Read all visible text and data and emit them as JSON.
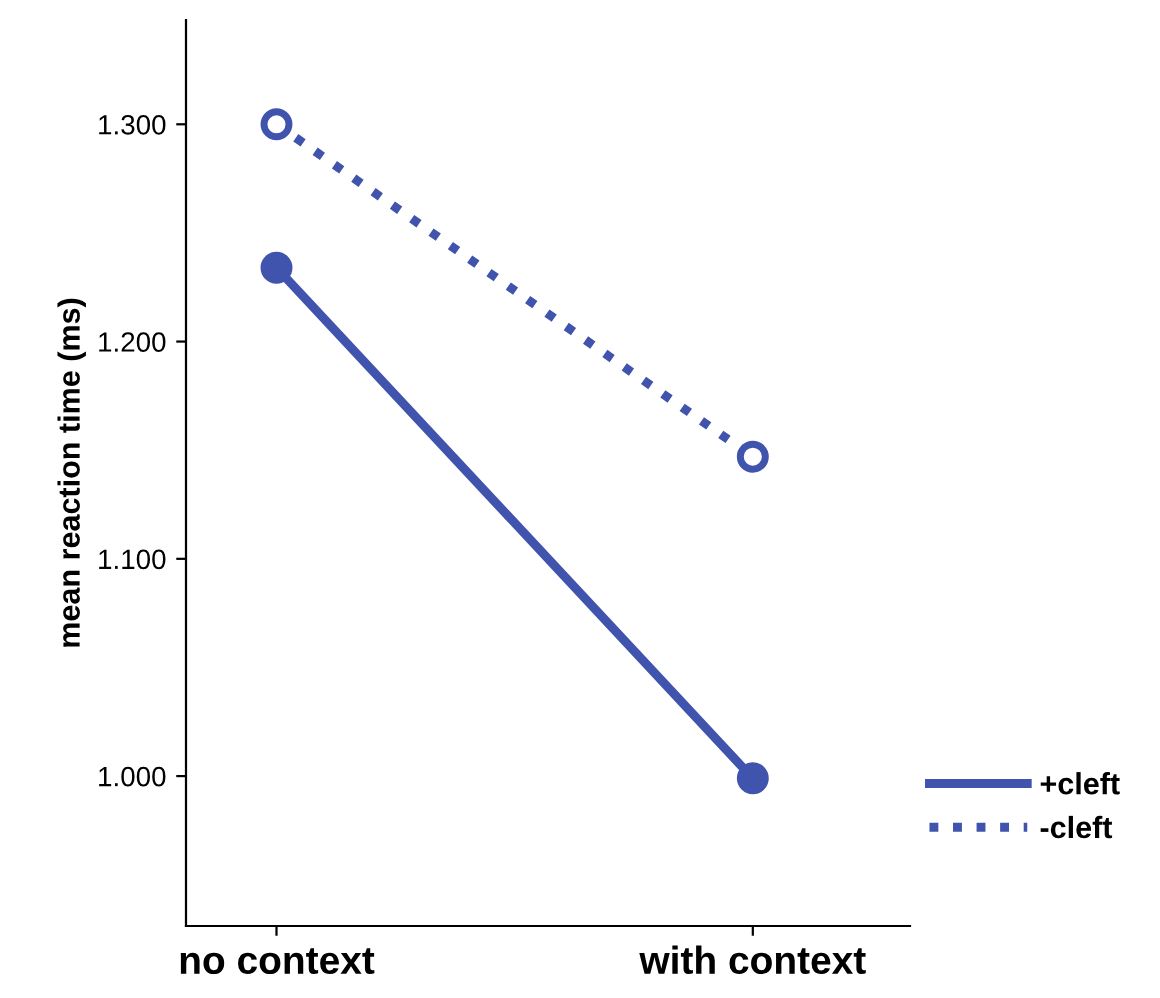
{
  "chart_data": {
    "type": "line",
    "ylabel": "mean reaction time (ms)",
    "categories": [
      "no context",
      "with context"
    ],
    "series": [
      {
        "name": "+cleft",
        "color": "#4154ad",
        "values": [
          1234,
          999
        ],
        "line_style": "solid"
      },
      {
        "name": "-cleft",
        "color": "#4154ad",
        "values": [
          1300,
          1147
        ],
        "line_style": "dotted"
      }
    ],
    "ylim": [
      931,
      1348
    ],
    "yticks": [
      {
        "value": 1000,
        "label": "1.000"
      },
      {
        "value": 1100,
        "label": "1.100"
      },
      {
        "value": 1200,
        "label": "1.200"
      },
      {
        "value": 1300,
        "label": "1.300"
      }
    ],
    "grid": false,
    "legend": "right",
    "marker": "circle"
  }
}
